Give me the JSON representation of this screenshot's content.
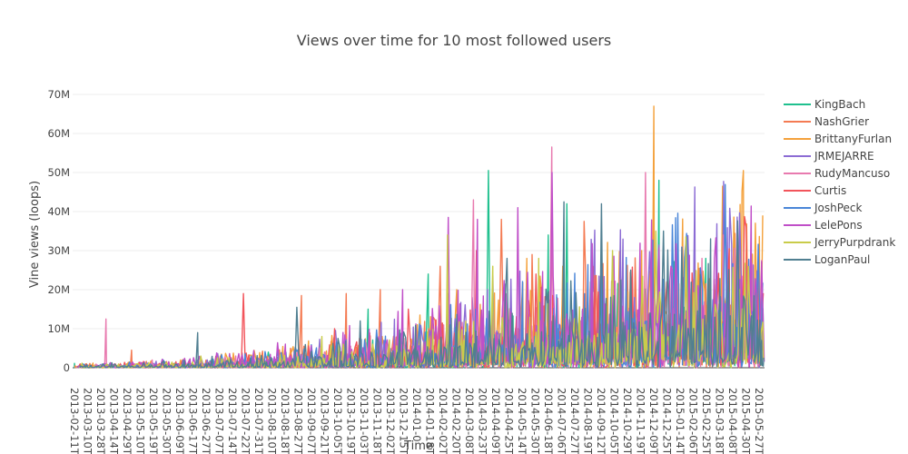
{
  "chart_data": {
    "type": "line",
    "title": "Views over time for 10 most followed users",
    "xlabel": "Time",
    "ylabel": "Vine views (loops)",
    "ylim": [
      0,
      70000000
    ],
    "y_ticks": [
      {
        "value": 0,
        "label": "0"
      },
      {
        "value": 10000000,
        "label": "10M"
      },
      {
        "value": 20000000,
        "label": "20M"
      },
      {
        "value": 30000000,
        "label": "30M"
      },
      {
        "value": 40000000,
        "label": "40M"
      },
      {
        "value": 50000000,
        "label": "50M"
      },
      {
        "value": 60000000,
        "label": "60M"
      },
      {
        "value": 70000000,
        "label": "70M"
      }
    ],
    "x_range": [
      "2013-02-11",
      "2015-06-15"
    ],
    "x_tick_labels": [
      "2013-02-11T0",
      "2013-03-10T0",
      "2013-03-28T0",
      "2013-04-14T0",
      "2013-04-29T0",
      "2013-05-10T0",
      "2013-05-19T0",
      "2013-05-30T0",
      "2013-06-09T0",
      "2013-06-17T0",
      "2013-06-27T0",
      "2013-07-07T0",
      "2013-07-14T0",
      "2013-07-22T0",
      "2013-07-31T0",
      "2013-08-10T0",
      "2013-08-18T0",
      "2013-08-27T0",
      "2013-09-07T0",
      "2013-09-21T0",
      "2013-10-05T0",
      "2013-10-19T0",
      "2013-11-03T0",
      "2013-11-18T0",
      "2013-12-02T0",
      "2013-12-15T0",
      "2014-01-0",
      "2014-01-18T0",
      "2014-02-02T0",
      "2014-02-20T0",
      "2014-03-08T0",
      "2014-03-23T0",
      "2014-04-09T0",
      "2014-04-25T0",
      "2014-05-14T0",
      "2014-05-30T0",
      "2014-06-18T0",
      "2014-07-06T0",
      "2014-07-27T0",
      "2014-08-19T0",
      "2014-09-12T0",
      "2014-10-05T0",
      "2014-10-29T0",
      "2014-11-19T0",
      "2014-12-09T0",
      "2014-12-25T0",
      "2015-01-14T0",
      "2015-02-06T0",
      "2015-02-25T0",
      "2015-03-18T0",
      "2015-04-08T0",
      "2015-04-30T0",
      "2015-05-27T0"
    ],
    "legend_position": "right",
    "grid": true,
    "series": [
      {
        "name": "KingBach",
        "color": "#1fc08e",
        "peaks": [
          [
            "2013-06-20",
            1000000
          ],
          [
            "2013-10-10",
            4000000
          ],
          [
            "2014-02-10",
            15000000
          ],
          [
            "2014-04-25",
            24000000
          ],
          [
            "2014-07-10",
            50500000
          ],
          [
            "2014-09-20",
            34000000
          ],
          [
            "2014-10-15",
            42000000
          ],
          [
            "2014-11-10",
            46500000
          ],
          [
            "2014-12-10",
            35000000
          ],
          [
            "2015-02-05",
            48000000
          ],
          [
            "2015-03-20",
            30000000
          ],
          [
            "2015-05-15",
            25000000
          ]
        ]
      },
      {
        "name": "NashGrier",
        "color": "#f47b53",
        "peaks": [
          [
            "2013-04-25",
            4500000
          ],
          [
            "2013-09-20",
            5000000
          ],
          [
            "2013-11-20",
            18500000
          ],
          [
            "2014-01-15",
            19000000
          ],
          [
            "2014-02-25",
            20000000
          ],
          [
            "2014-05-10",
            26000000
          ],
          [
            "2014-07-25",
            38000000
          ],
          [
            "2014-09-01",
            29000000
          ],
          [
            "2014-11-05",
            37500000
          ],
          [
            "2015-01-10",
            30000000
          ],
          [
            "2015-03-20",
            25000000
          ],
          [
            "2015-05-20",
            15000000
          ]
        ]
      },
      {
        "name": "BrittanyFurlan",
        "color": "#f4a13b",
        "peaks": [
          [
            "2013-06-25",
            2000000
          ],
          [
            "2013-08-15",
            3000000
          ],
          [
            "2014-03-01",
            8000000
          ],
          [
            "2014-06-01",
            20000000
          ],
          [
            "2014-08-25",
            28000000
          ],
          [
            "2014-11-25",
            27000000
          ],
          [
            "2015-01-30",
            67000000
          ],
          [
            "2015-03-10",
            26000000
          ],
          [
            "2015-05-20",
            50500000
          ],
          [
            "2015-06-05",
            20000000
          ]
        ]
      },
      {
        "name": "JRMEJARRE",
        "color": "#8c6cd4",
        "peaks": [
          [
            "2014-02-15",
            5000000
          ],
          [
            "2014-07-01",
            12000000
          ],
          [
            "2014-10-01",
            18000000
          ],
          [
            "2015-01-15",
            16000000
          ],
          [
            "2015-04-01",
            14000000
          ]
        ]
      },
      {
        "name": "RudyMancuso",
        "color": "#e87aaf",
        "peaks": [
          [
            "2013-03-25",
            12500000
          ],
          [
            "2013-05-20",
            2000000
          ],
          [
            "2013-09-01",
            3000000
          ],
          [
            "2014-02-01",
            10000000
          ],
          [
            "2014-06-20",
            43000000
          ],
          [
            "2014-09-25",
            56500000
          ],
          [
            "2014-11-20",
            28000000
          ],
          [
            "2015-01-20",
            50000000
          ],
          [
            "2015-03-05",
            31000000
          ],
          [
            "2015-04-25",
            34000000
          ],
          [
            "2015-06-01",
            14000000
          ]
        ]
      },
      {
        "name": "Curtis",
        "color": "#f2545b",
        "peaks": [
          [
            "2013-04-05",
            1000000
          ],
          [
            "2013-09-10",
            19000000
          ],
          [
            "2013-11-01",
            9000000
          ],
          [
            "2014-01-01",
            10000000
          ],
          [
            "2014-04-01",
            15000000
          ],
          [
            "2014-06-25",
            30000000
          ],
          [
            "2014-09-05",
            24000000
          ],
          [
            "2014-11-15",
            26000000
          ],
          [
            "2015-02-15",
            22000000
          ],
          [
            "2015-05-01",
            18000000
          ]
        ]
      },
      {
        "name": "JoshPeck",
        "color": "#4a86d8",
        "peaks": [
          [
            "2013-10-01",
            2000000
          ],
          [
            "2014-03-15",
            9000000
          ],
          [
            "2014-07-15",
            14000000
          ],
          [
            "2014-10-20",
            16000000
          ],
          [
            "2015-02-01",
            13000000
          ],
          [
            "2015-05-10",
            11000000
          ]
        ]
      },
      {
        "name": "LelePons",
        "color": "#c04fc8",
        "peaks": [
          [
            "2014-03-25",
            20000000
          ],
          [
            "2014-04-20",
            29000000
          ],
          [
            "2014-05-20",
            38500000
          ],
          [
            "2014-06-25",
            38000000
          ],
          [
            "2014-08-15",
            41000000
          ],
          [
            "2014-09-25",
            50000000
          ],
          [
            "2014-11-01",
            30000000
          ],
          [
            "2015-01-05",
            28000000
          ],
          [
            "2015-02-20",
            26000000
          ],
          [
            "2015-04-15",
            28000000
          ],
          [
            "2015-06-10",
            15000000
          ]
        ]
      },
      {
        "name": "JerryPurpdrank",
        "color": "#c9cc4a",
        "peaks": [
          [
            "2013-07-20",
            3000000
          ],
          [
            "2013-12-15",
            8000000
          ],
          [
            "2014-04-15",
            36000000
          ],
          [
            "2014-05-20",
            34000000
          ],
          [
            "2014-07-15",
            26000000
          ],
          [
            "2014-09-10",
            28000000
          ],
          [
            "2014-12-10",
            30000000
          ],
          [
            "2015-02-01",
            35000000
          ],
          [
            "2015-03-10",
            33500000
          ],
          [
            "2015-05-15",
            20000000
          ]
        ]
      },
      {
        "name": "LoganPaul",
        "color": "#507f91",
        "peaks": [
          [
            "2013-07-15",
            9000000
          ],
          [
            "2013-11-15",
            15500000
          ],
          [
            "2014-02-01",
            12000000
          ],
          [
            "2014-05-25",
            32000000
          ],
          [
            "2014-08-01",
            28000000
          ],
          [
            "2014-10-10",
            42500000
          ],
          [
            "2014-11-25",
            42000000
          ],
          [
            "2015-01-01",
            25000000
          ],
          [
            "2015-02-10",
            35000000
          ],
          [
            "2015-04-10",
            33000000
          ],
          [
            "2015-06-12",
            7000000
          ]
        ]
      }
    ]
  }
}
